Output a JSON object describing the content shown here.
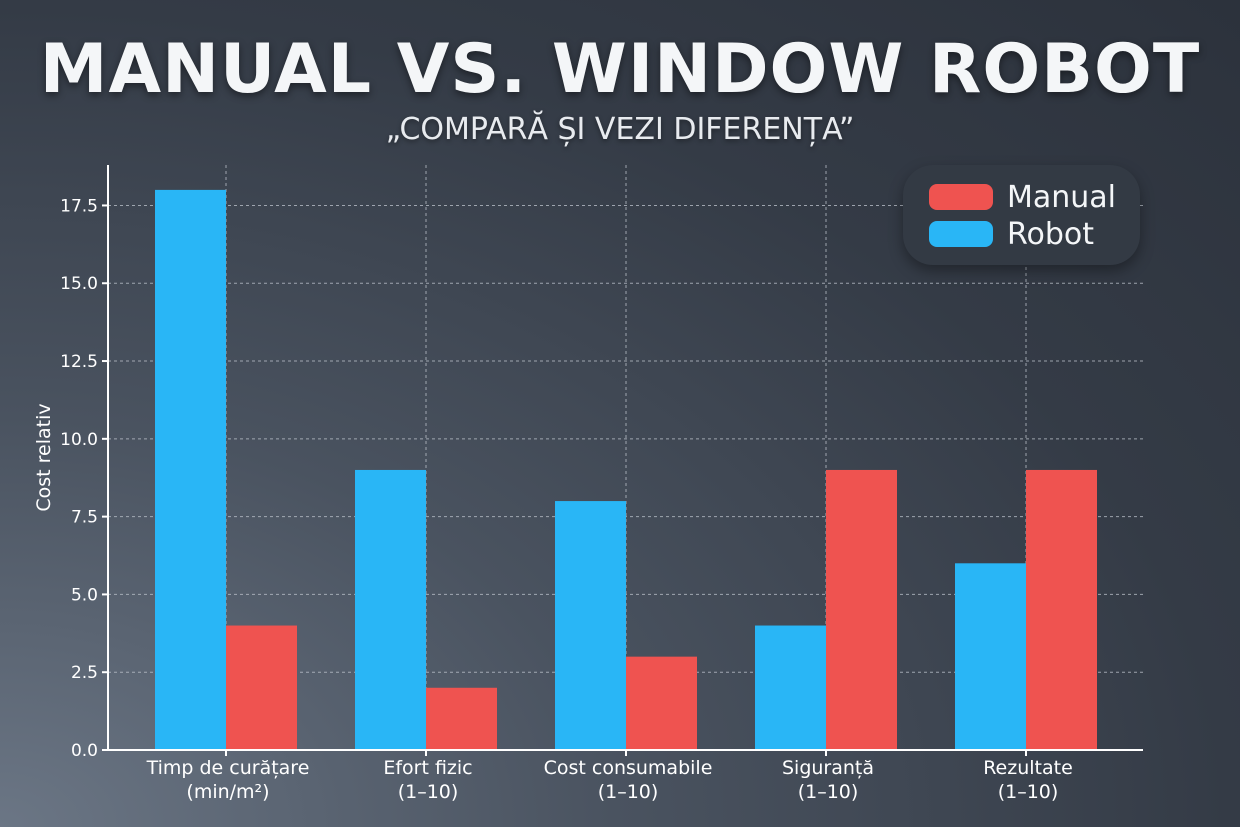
{
  "title": "MANUAL VS. WINDOW ROBOT",
  "subtitle": "„COMPARĂ ȘI VEZI DIFERENȚA”",
  "chart_data": {
    "type": "bar",
    "categories": [
      [
        "Timp de curățare",
        "(min/m²)"
      ],
      [
        "Efort fizic",
        "(1–10)"
      ],
      [
        "Cost consumabile",
        "(1–10)"
      ],
      [
        "Siguranță",
        "(1–10)"
      ],
      [
        "Rezultate",
        "(1–10)"
      ]
    ],
    "series": [
      {
        "name": "Robot",
        "color": "#29b6f6",
        "values": [
          18,
          9,
          8,
          4,
          6
        ]
      },
      {
        "name": "Manual",
        "color": "#ef5350",
        "values": [
          4,
          2,
          3,
          9,
          9
        ]
      }
    ],
    "ylabel": "Cost relativ",
    "ylim": [
      0,
      18.8
    ],
    "yticks": [
      "0.0",
      "2.5",
      "5.0",
      "7.5",
      "10.0",
      "12.5",
      "15.0",
      "17.5"
    ],
    "grid": true,
    "legend_position": "top-right",
    "legend_order": [
      "Manual",
      "Robot"
    ]
  }
}
